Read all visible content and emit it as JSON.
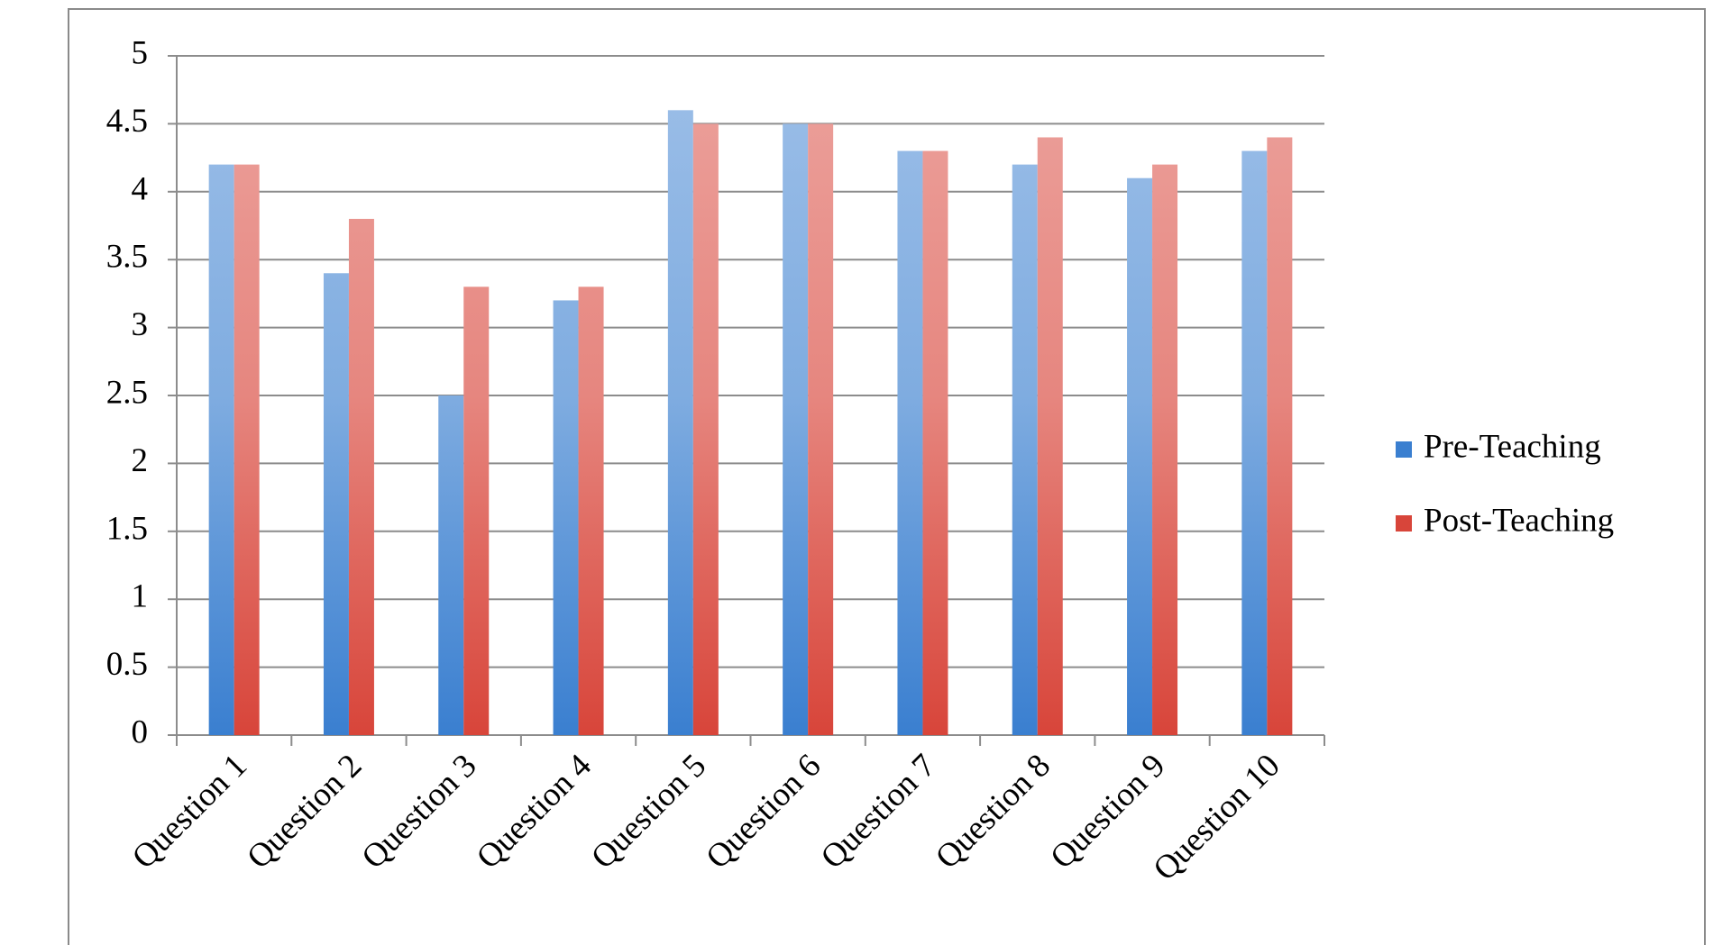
{
  "chart_data": {
    "type": "bar",
    "categories": [
      "Question 1",
      "Question 2",
      "Question 3",
      "Question 4",
      "Question 5",
      "Question 6",
      "Question 7",
      "Question 8",
      "Question 9",
      "Question 10"
    ],
    "series": [
      {
        "name": "Pre-Teaching",
        "color": "#3a7fd0",
        "values": [
          4.2,
          3.4,
          2.5,
          3.2,
          4.6,
          4.5,
          4.3,
          4.2,
          4.1,
          4.3
        ]
      },
      {
        "name": "Post-Teaching",
        "color": "#d8453a",
        "values": [
          4.2,
          3.8,
          3.3,
          3.3,
          4.5,
          4.5,
          4.3,
          4.4,
          4.2,
          4.4
        ]
      }
    ],
    "ylim": [
      0,
      5
    ],
    "yticks": [
      0,
      0.5,
      1,
      1.5,
      2,
      2.5,
      3,
      3.5,
      4,
      4.5,
      5
    ],
    "grid": true,
    "legend": "right"
  }
}
